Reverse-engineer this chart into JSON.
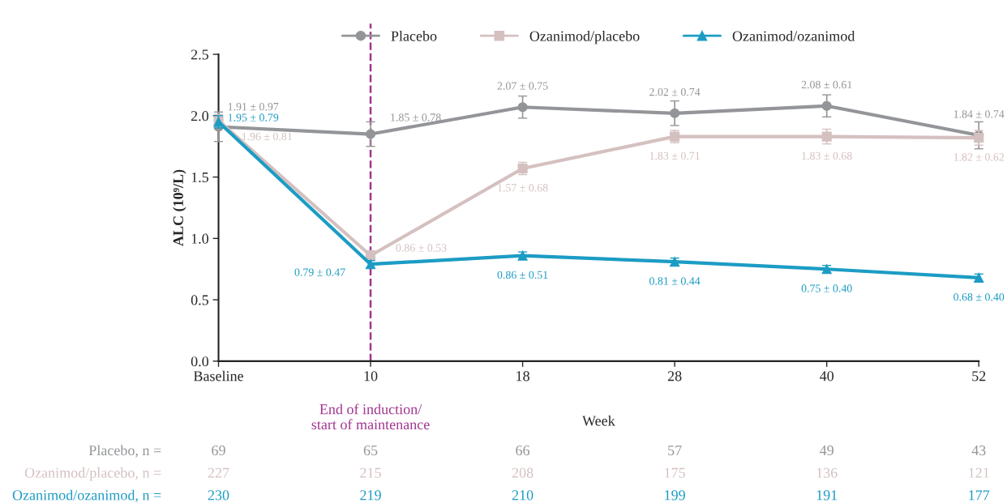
{
  "chart_data": {
    "type": "line",
    "xlabel": "Week",
    "ylabel": "ALC (10⁹/L)",
    "categories": [
      "Baseline",
      "10",
      "18",
      "28",
      "40",
      "52"
    ],
    "ylim": [
      0,
      2.5
    ],
    "yticks": [
      {
        "value": 0,
        "label": "0.0"
      },
      0.5,
      {
        "value": 1,
        "label": "1.0"
      },
      1.5,
      {
        "value": 2,
        "label": "2.0"
      },
      2.5
    ],
    "legend": "top",
    "grid": false,
    "series": [
      {
        "name": "Placebo",
        "color": "#939598",
        "marker": "circle",
        "values": [
          1.91,
          1.85,
          2.07,
          2.02,
          2.08,
          1.84
        ],
        "errors": [
          0.12,
          0.1,
          0.09,
          0.1,
          0.09,
          0.11
        ],
        "value_labels": [
          "1.91 ± 0.97",
          "1.85 ± 0.78",
          "2.07 ± 0.75",
          "2.02 ± 0.74",
          "2.08 ± 0.61",
          "1.84 ± 0.74"
        ]
      },
      {
        "name": "Ozanimod/placebo",
        "color": "#d5c0c0",
        "marker": "square",
        "values": [
          1.96,
          0.86,
          1.57,
          1.83,
          1.83,
          1.82
        ],
        "errors": [
          0.05,
          0.04,
          0.05,
          0.05,
          0.06,
          0.06
        ],
        "value_labels": [
          "1.96 ± 0.81",
          "0.86 ± 0.53",
          "1.57 ± 0.68",
          "1.83 ± 0.71",
          "1.83 ± 0.68",
          "1.82 ± 0.62"
        ]
      },
      {
        "name": "Ozanimod/ozanimod",
        "color": "#1c9cc4",
        "marker": "triangle",
        "values": [
          1.95,
          0.79,
          0.86,
          0.81,
          0.75,
          0.68
        ],
        "errors": [
          0.05,
          0.03,
          0.03,
          0.03,
          0.03,
          0.03
        ],
        "value_labels": [
          "1.95 ± 0.79",
          "0.79 ± 0.47",
          "0.86 ± 0.51",
          "0.81 ± 0.44",
          "0.75 ± 0.40",
          "0.68 ± 0.40"
        ]
      }
    ],
    "ref_lines": [
      {
        "axis": "x",
        "value": "10",
        "label": "End of induction/\nstart of maintenance",
        "color": "#a0368f",
        "line_style": "dashed"
      }
    ],
    "annotations": [
      "Placebo, n =",
      "69",
      "65",
      "66",
      "57",
      "49",
      "43",
      "Ozanimod/placebo, n =",
      "227",
      "215",
      "208",
      "175",
      "136",
      "121",
      "Ozanimod/ozanimod, n =",
      "230",
      "219",
      "210",
      "199",
      "191",
      "177"
    ]
  }
}
